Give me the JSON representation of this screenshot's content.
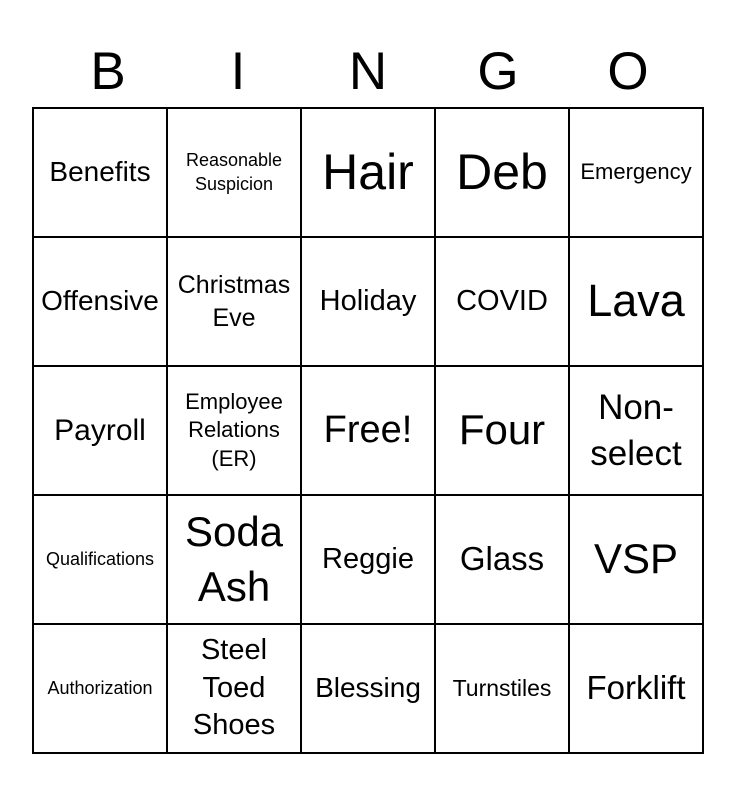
{
  "title": {
    "letters": [
      "B",
      "I",
      "N",
      "G",
      "O"
    ]
  },
  "card": {
    "rows": [
      {
        "cells": [
          {
            "label": "Benefits"
          },
          {
            "label": "Reasonable Suspicion"
          },
          {
            "label": "Hair"
          },
          {
            "label": "Deb"
          },
          {
            "label": "Emergency"
          }
        ]
      },
      {
        "cells": [
          {
            "label": "Offensive"
          },
          {
            "label": "Christmas Eve"
          },
          {
            "label": "Holiday"
          },
          {
            "label": "COVID"
          },
          {
            "label": "Lava"
          }
        ]
      },
      {
        "cells": [
          {
            "label": "Payroll"
          },
          {
            "label": "Employee Relations (ER)"
          },
          {
            "label": "Free!"
          },
          {
            "label": "Four"
          },
          {
            "label": "Non-select"
          }
        ]
      },
      {
        "cells": [
          {
            "label": "Qualifications"
          },
          {
            "label": "Soda Ash"
          },
          {
            "label": "Reggie"
          },
          {
            "label": "Glass"
          },
          {
            "label": "VSP"
          }
        ]
      },
      {
        "cells": [
          {
            "label": "Authorization"
          },
          {
            "label": "Steel Toed Shoes"
          },
          {
            "label": "Blessing"
          },
          {
            "label": "Turnstiles"
          },
          {
            "label": "Forklift"
          }
        ]
      }
    ]
  },
  "colors": {
    "background": "#ffffff",
    "text": "#000000",
    "grid_border": "#000000"
  }
}
